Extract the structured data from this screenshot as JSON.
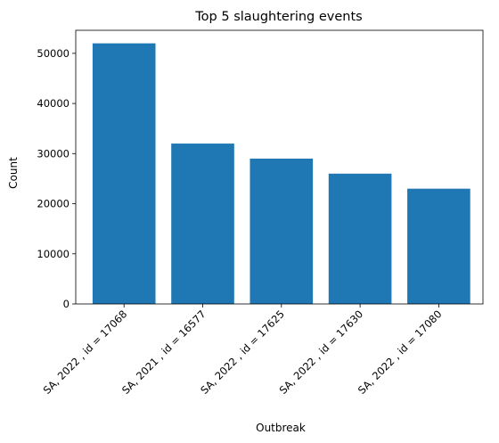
{
  "chart_data": {
    "type": "bar",
    "title": "Top 5 slaughtering events",
    "xlabel": "Outbreak",
    "ylabel": "Count",
    "categories": [
      "SA, 2022 , id = 17068",
      "SA, 2021 , id = 16577",
      "SA, 2022 , id = 17625",
      "SA, 2022 , id = 17630",
      "SA, 2022 , id = 17080"
    ],
    "values": [
      52000,
      32000,
      29000,
      26000,
      23000
    ],
    "ylim": [
      0,
      54600
    ],
    "yticks": [
      0,
      10000,
      20000,
      30000,
      40000,
      50000
    ],
    "bar_color": "#1f77b4",
    "grid": false,
    "legend": "none"
  }
}
